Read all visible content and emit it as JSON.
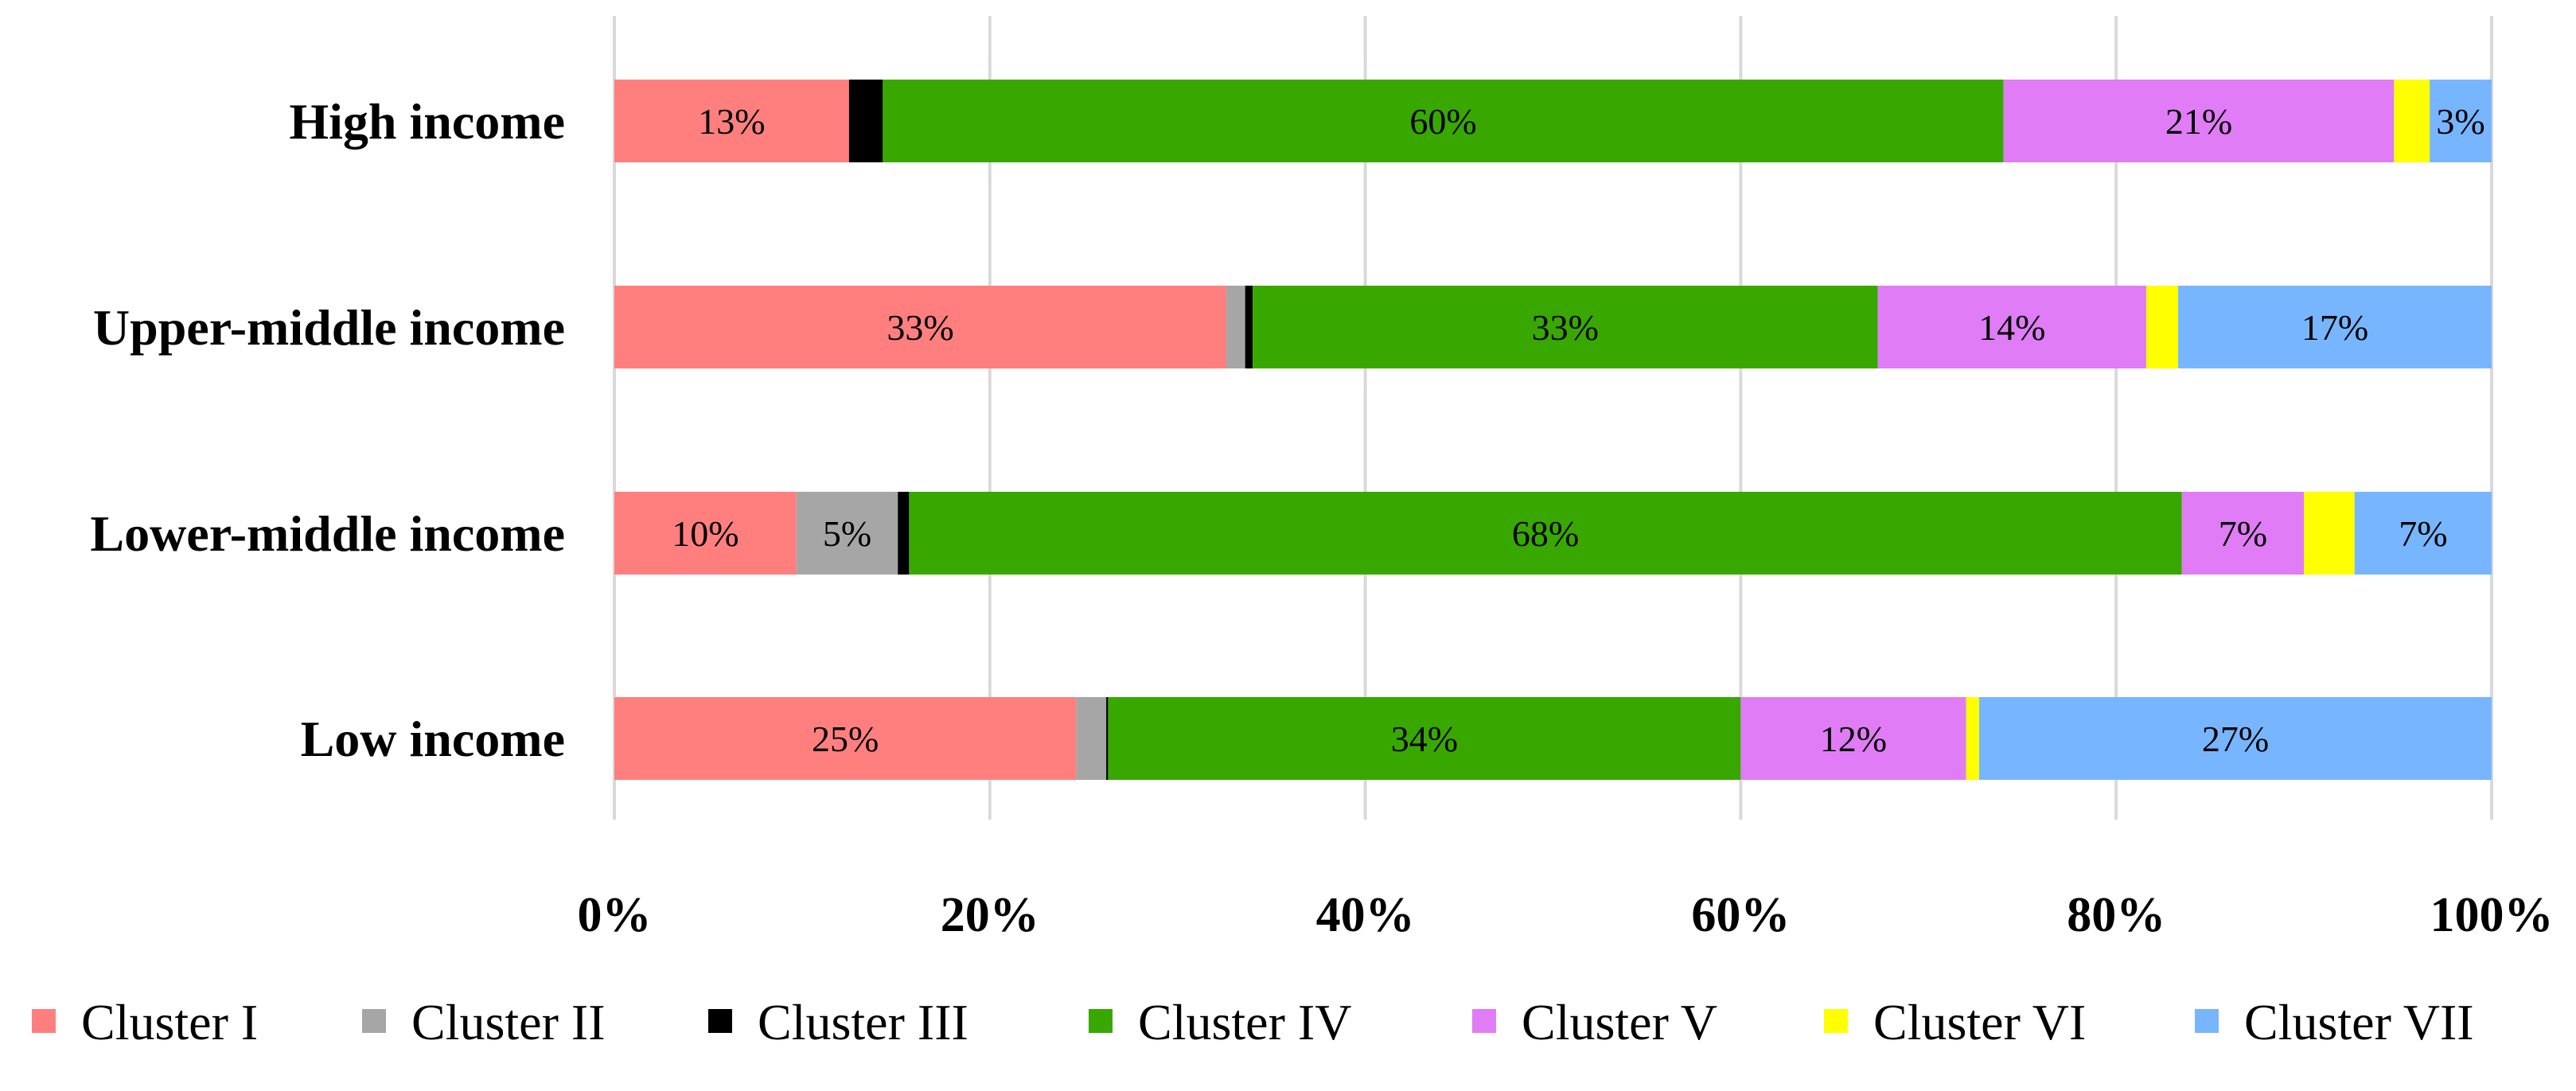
{
  "chart_data": {
    "type": "bar",
    "orientation": "horizontal",
    "stacked": true,
    "percent_stacked": true,
    "title": "",
    "xlabel": "",
    "ylabel": "",
    "xlim": [
      0,
      100
    ],
    "x_ticks": [
      "0%",
      "20%",
      "40%",
      "60%",
      "80%",
      "100%"
    ],
    "grid": "vertical",
    "legend_position": "bottom",
    "categories": [
      "High income",
      "Upper-middle income",
      "Lower-middle income",
      "Low income"
    ],
    "series": [
      {
        "name": "Cluster I",
        "color": "#ff7f7f",
        "values": [
          12.5,
          32.6,
          9.7,
          24.6
        ],
        "labels": [
          "13%",
          "33%",
          "10%",
          "25%"
        ]
      },
      {
        "name": "Cluster II",
        "color": "#a6a6a6",
        "values": [
          0,
          1.0,
          5.4,
          1.6
        ],
        "labels": [
          "",
          "",
          "5%",
          ""
        ]
      },
      {
        "name": "Cluster III",
        "color": "#000000",
        "values": [
          1.8,
          0.4,
          0.6,
          0.1
        ],
        "labels": [
          "",
          "",
          "",
          ""
        ]
      },
      {
        "name": "Cluster IV",
        "color": "#38a800",
        "values": [
          59.7,
          33.3,
          67.8,
          33.7
        ],
        "labels": [
          "60%",
          "33%",
          "68%",
          "34%"
        ]
      },
      {
        "name": "Cluster V",
        "color": "#e07cf5",
        "values": [
          20.8,
          14.3,
          6.5,
          12.0
        ],
        "labels": [
          "21%",
          "14%",
          "7%",
          "12%"
        ]
      },
      {
        "name": "Cluster VI",
        "color": "#ffff00",
        "values": [
          1.9,
          1.7,
          2.7,
          0.7
        ],
        "labels": [
          "",
          "",
          "",
          ""
        ]
      },
      {
        "name": "Cluster VII",
        "color": "#77b6ff",
        "values": [
          3.3,
          16.7,
          7.3,
          27.3
        ],
        "labels": [
          "3%",
          "17%",
          "7%",
          "27%"
        ]
      }
    ]
  }
}
